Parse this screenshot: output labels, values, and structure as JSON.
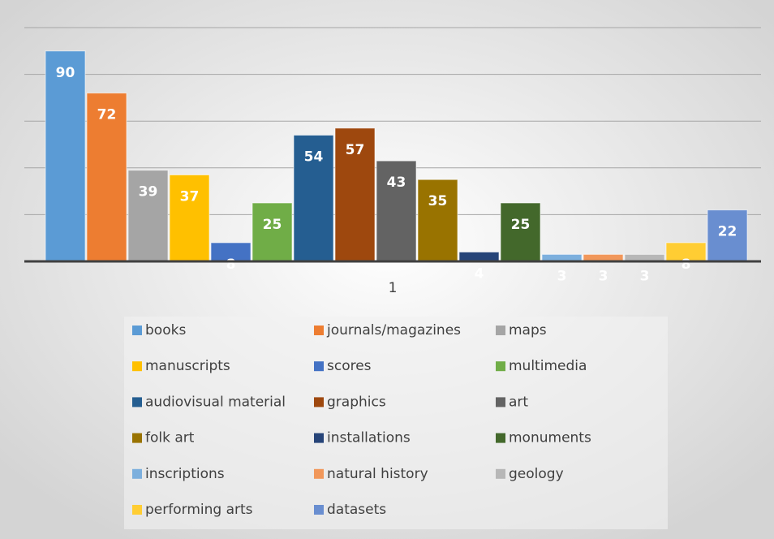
{
  "chart_data": {
    "type": "bar",
    "categories": [
      "1"
    ],
    "series": [
      {
        "name": "books",
        "color": "#5b9bd5",
        "values": [
          90
        ]
      },
      {
        "name": "journals/magazines",
        "color": "#ed7d31",
        "values": [
          72
        ]
      },
      {
        "name": "maps",
        "color": "#a5a5a5",
        "values": [
          39
        ]
      },
      {
        "name": "manuscripts",
        "color": "#ffc000",
        "values": [
          37
        ]
      },
      {
        "name": "scores",
        "color": "#4472c4",
        "values": [
          8
        ]
      },
      {
        "name": "multimedia",
        "color": "#70ad47",
        "values": [
          25
        ]
      },
      {
        "name": "audiovisual material",
        "color": "#255e91",
        "values": [
          54
        ]
      },
      {
        "name": "graphics",
        "color": "#9e480e",
        "values": [
          57
        ]
      },
      {
        "name": "art",
        "color": "#636363",
        "values": [
          43
        ]
      },
      {
        "name": "folk art",
        "color": "#997300",
        "values": [
          35
        ]
      },
      {
        "name": "installations",
        "color": "#264478",
        "values": [
          4
        ]
      },
      {
        "name": "monuments",
        "color": "#43682b",
        "values": [
          25
        ]
      },
      {
        "name": "inscriptions",
        "color": "#7cafdd",
        "values": [
          3
        ]
      },
      {
        "name": "natural history",
        "color": "#f1975a",
        "values": [
          3
        ]
      },
      {
        "name": "geology",
        "color": "#b7b7b7",
        "values": [
          3
        ]
      },
      {
        "name": "performing arts",
        "color": "#ffcd33",
        "values": [
          8
        ]
      },
      {
        "name": "datasets",
        "color": "#698ed0",
        "values": [
          22
        ]
      }
    ],
    "ylim": [
      0,
      100
    ],
    "yticks": [
      0,
      20,
      40,
      60,
      80,
      100
    ],
    "grid": true,
    "legend": "bottom"
  }
}
